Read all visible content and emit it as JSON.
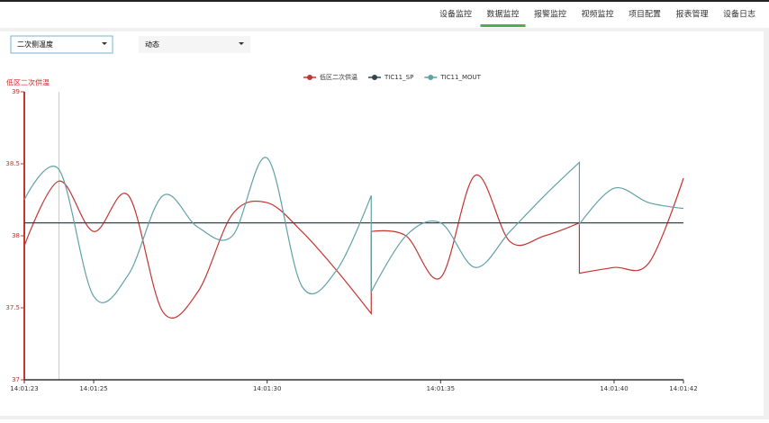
{
  "nav": {
    "tabs": [
      "设备监控",
      "数据监控",
      "报警监控",
      "视频监控",
      "项目配置",
      "报表管理",
      "设备日志"
    ],
    "active": 1
  },
  "filters": {
    "variable": "二次侧温度",
    "mode": "动态"
  },
  "chart_data": {
    "type": "line",
    "ylabel": "低区二次供温",
    "x": [
      "14:01:23",
      "14:01:24",
      "14:01:25",
      "14:01:26",
      "14:01:27",
      "14:01:28",
      "14:01:29",
      "14:01:30",
      "14:01:31",
      "14:01:32",
      "14:01:33",
      "14:01:33",
      "14:01:34",
      "14:01:35",
      "14:01:36",
      "14:01:37",
      "14:01:38",
      "14:01:39",
      "14:01:39",
      "14:01:40",
      "14:01:41",
      "14:01:42"
    ],
    "series": [
      {
        "name": "低区二次供温",
        "color": "#c23531",
        "values": [
          37.93,
          38.38,
          38.03,
          38.28,
          37.47,
          37.61,
          38.15,
          38.23,
          38.03,
          37.76,
          37.46,
          38.03,
          38.0,
          37.71,
          38.42,
          37.96,
          38.0,
          38.09,
          37.74,
          37.78,
          37.81,
          38.4
        ]
      },
      {
        "name": "TIC11_SP",
        "color": "#2f4554",
        "values": [
          38.09,
          38.09,
          38.09,
          38.09,
          38.09,
          38.09,
          38.09,
          38.09,
          38.09,
          38.09,
          38.09,
          38.09,
          38.09,
          38.09,
          38.09,
          38.09,
          38.09,
          38.09,
          38.09,
          38.09,
          38.09,
          38.09
        ]
      },
      {
        "name": "TIC11_MOUT",
        "color": "#61a0a8",
        "values": [
          38.25,
          38.46,
          37.58,
          37.73,
          38.28,
          38.06,
          38.0,
          38.54,
          37.65,
          37.76,
          38.28,
          37.61,
          38.0,
          38.09,
          37.78,
          38.03,
          38.28,
          38.51,
          38.08,
          38.33,
          38.23,
          38.19
        ]
      }
    ],
    "ylim": [
      37,
      39
    ],
    "yticks": [
      37,
      37.5,
      38,
      38.5,
      39
    ],
    "xlim": [
      "14:01:23",
      "14:01:42"
    ],
    "xticks": [
      "14:01:23",
      "14:01:25",
      "14:01:30",
      "14:01:35",
      "14:01:40",
      "14:01:42"
    ]
  }
}
